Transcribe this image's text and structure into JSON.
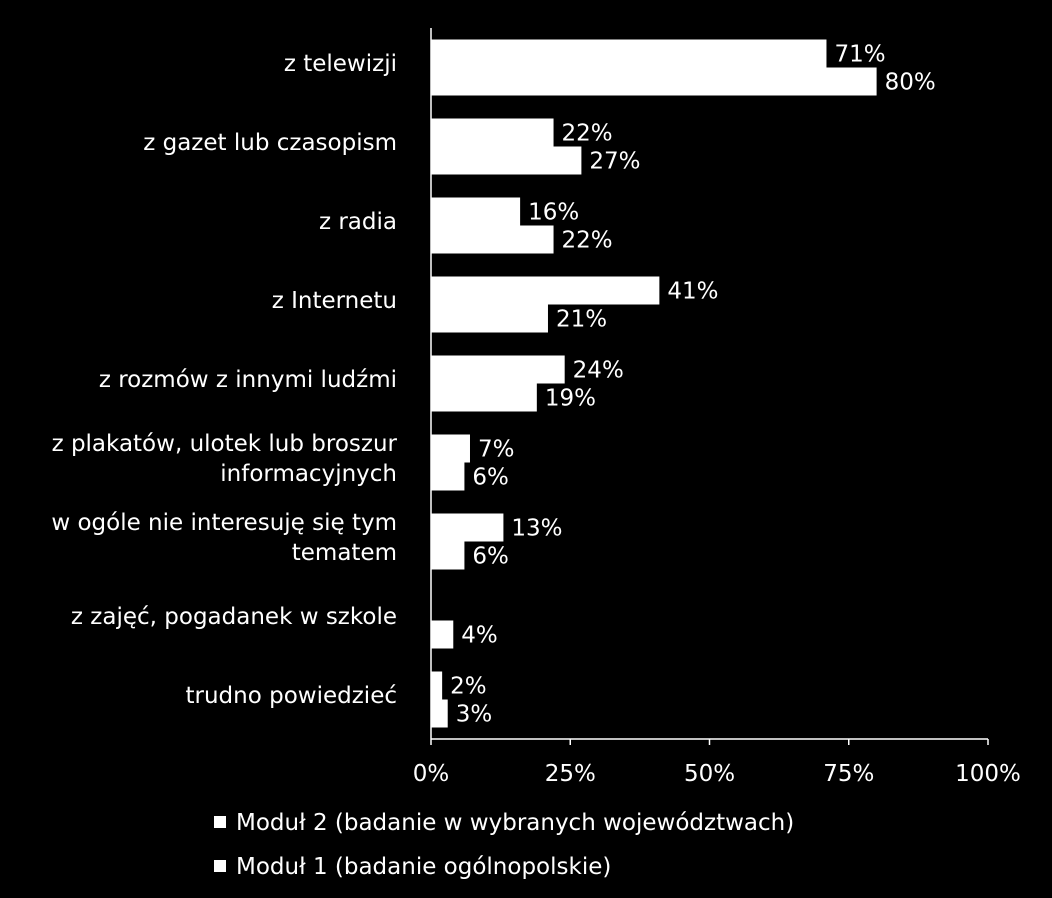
{
  "chart_data": {
    "type": "bar",
    "orientation": "horizontal",
    "categories": [
      "z telewizji",
      "z gazet lub czasopism",
      "z radia",
      "z Internetu",
      "z rozmów z innymi ludźmi",
      "z plakatów, ulotek lub broszur informacyjnych",
      "w ogóle nie interesuję się tym tematem",
      "z zajęć, pogadanek w szkole",
      "trudno powiedzieć"
    ],
    "series": [
      {
        "name": "Moduł 2 (badanie w wybranych województwach)",
        "values": [
          71,
          22,
          16,
          41,
          24,
          7,
          13,
          null,
          2
        ],
        "labels": [
          "71%",
          "22%",
          "16%",
          "41%",
          "24%",
          "7%",
          "13%",
          "",
          "2%"
        ]
      },
      {
        "name": "Moduł 1 (badanie ogólnopolskie)",
        "values": [
          80,
          27,
          22,
          21,
          19,
          6,
          6,
          4,
          3
        ],
        "labels": [
          "80%",
          "27%",
          "22%",
          "21%",
          "19%",
          "6%",
          "6%",
          "4%",
          "3%"
        ]
      }
    ],
    "xlim": [
      0,
      100
    ],
    "xticks": [
      "0%",
      "25%",
      "50%",
      "75%",
      "100%"
    ],
    "grid": false,
    "legend_position": "bottom",
    "colors": {
      "background": "#000000",
      "bars": "#ffffff",
      "text": "#ffffff"
    }
  }
}
